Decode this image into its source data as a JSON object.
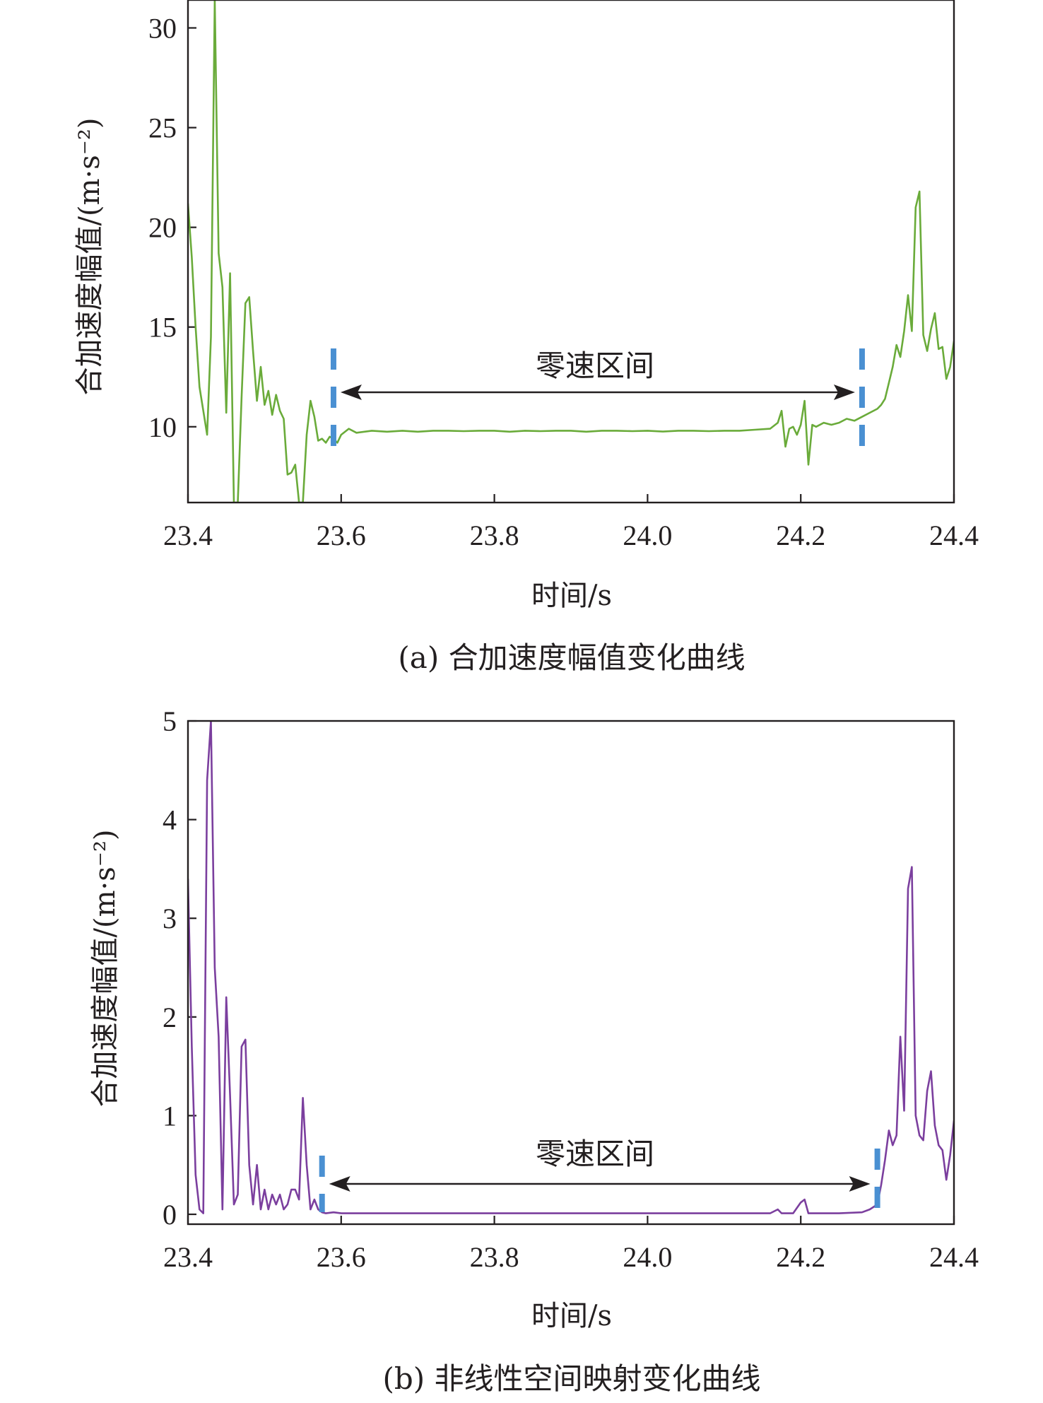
{
  "colors": {
    "series_a": "#6aab3a",
    "series_b": "#7b3f9e",
    "marker": "#4a90d2",
    "arrow": "#231f20",
    "axis": "#231f20"
  },
  "chart_data": [
    {
      "type": "line",
      "caption": "(a) 合加速度幅值变化曲线",
      "xlabel": "时间/s",
      "ylabel": "合加速度幅值/(m·s⁻²)",
      "xlim": [
        23.4,
        24.4
      ],
      "ylim": [
        6.2,
        31.4
      ],
      "xticks": [
        "23.4",
        "23.6",
        "23.8",
        "24.0",
        "24.2",
        "24.4"
      ],
      "yticks": [
        "10",
        "15",
        "20",
        "25",
        "30"
      ],
      "ytick_values": [
        10,
        15,
        20,
        25,
        30
      ],
      "annotation": "零速区间",
      "zero_velocity_interval": [
        23.59,
        24.28
      ],
      "series": [
        {
          "x": [
            23.4,
            23.405,
            23.41,
            23.415,
            23.42,
            23.425,
            23.43,
            23.435,
            23.44,
            23.445,
            23.45,
            23.455,
            23.46,
            23.465,
            23.47,
            23.475,
            23.48,
            23.485,
            23.49,
            23.495,
            23.5,
            23.505,
            23.51,
            23.515,
            23.52,
            23.525,
            23.53,
            23.535,
            23.54,
            23.545,
            23.55,
            23.555,
            23.56,
            23.565,
            23.57,
            23.575,
            23.58,
            23.585,
            23.59,
            23.595,
            23.6,
            23.61,
            23.62,
            23.64,
            23.66,
            23.68,
            23.7,
            23.72,
            23.74,
            23.76,
            23.78,
            23.8,
            23.82,
            23.84,
            23.86,
            23.88,
            23.9,
            23.92,
            23.94,
            23.96,
            23.98,
            24.0,
            24.02,
            24.04,
            24.06,
            24.08,
            24.1,
            24.12,
            24.14,
            24.16,
            24.17,
            24.175,
            24.18,
            24.185,
            24.19,
            24.195,
            24.2,
            24.205,
            24.21,
            24.215,
            24.22,
            24.23,
            24.24,
            24.25,
            24.26,
            24.27,
            24.28,
            24.29,
            24.3,
            24.305,
            24.31,
            24.315,
            24.32,
            24.325,
            24.33,
            24.335,
            24.34,
            24.345,
            24.35,
            24.355,
            24.36,
            24.365,
            24.37,
            24.375,
            24.38,
            24.385,
            24.39,
            24.395,
            24.4
          ],
          "y": [
            21.2,
            18.5,
            15.0,
            12.0,
            10.8,
            9.6,
            14.5,
            31.4,
            18.7,
            17.0,
            10.7,
            17.7,
            6.2,
            6.2,
            11.5,
            16.2,
            16.5,
            13.8,
            11.3,
            13.0,
            11.1,
            11.8,
            10.6,
            11.6,
            10.8,
            10.4,
            7.6,
            7.7,
            8.1,
            6.2,
            6.2,
            9.6,
            11.3,
            10.5,
            9.3,
            9.4,
            9.2,
            9.5,
            9.4,
            9.2,
            9.6,
            9.9,
            9.7,
            9.8,
            9.75,
            9.8,
            9.75,
            9.8,
            9.8,
            9.78,
            9.8,
            9.8,
            9.75,
            9.8,
            9.78,
            9.8,
            9.8,
            9.75,
            9.8,
            9.8,
            9.78,
            9.8,
            9.76,
            9.8,
            9.8,
            9.78,
            9.8,
            9.8,
            9.85,
            9.9,
            10.2,
            10.8,
            9.0,
            9.9,
            10.0,
            9.6,
            10.1,
            11.3,
            8.1,
            10.1,
            10.0,
            10.2,
            10.1,
            10.2,
            10.4,
            10.3,
            10.5,
            10.7,
            10.9,
            11.1,
            11.4,
            12.2,
            13.0,
            14.1,
            13.5,
            14.8,
            16.6,
            14.8,
            21.0,
            21.8,
            14.6,
            13.8,
            14.9,
            15.7,
            13.9,
            14.0,
            12.4,
            13.0,
            14.3
          ]
        }
      ]
    },
    {
      "type": "line",
      "caption": "(b) 非线性空间映射变化曲线",
      "xlabel": "时间/s",
      "ylabel": "合加速度幅值/(m·s⁻²)",
      "xlim": [
        23.4,
        24.4
      ],
      "ylim": [
        -0.1,
        5.0
      ],
      "xticks": [
        "23.4",
        "23.6",
        "23.8",
        "24.0",
        "24.2",
        "24.4"
      ],
      "yticks": [
        "0",
        "1",
        "2",
        "3",
        "4",
        "5"
      ],
      "ytick_values": [
        0,
        1,
        2,
        3,
        4,
        5
      ],
      "annotation": "零速区间",
      "zero_velocity_interval": [
        23.575,
        24.3
      ],
      "series": [
        {
          "x": [
            23.4,
            23.405,
            23.41,
            23.415,
            23.42,
            23.425,
            23.43,
            23.435,
            23.44,
            23.445,
            23.45,
            23.455,
            23.46,
            23.465,
            23.47,
            23.475,
            23.48,
            23.485,
            23.49,
            23.495,
            23.5,
            23.505,
            23.51,
            23.515,
            23.52,
            23.525,
            23.53,
            23.535,
            23.54,
            23.545,
            23.55,
            23.555,
            23.56,
            23.565,
            23.57,
            23.575,
            23.58,
            23.59,
            23.6,
            23.62,
            23.65,
            23.7,
            23.75,
            23.8,
            23.85,
            23.9,
            23.95,
            24.0,
            24.05,
            24.1,
            24.15,
            24.16,
            24.17,
            24.175,
            24.18,
            24.19,
            24.2,
            24.205,
            24.21,
            24.215,
            24.22,
            24.25,
            24.28,
            24.29,
            24.3,
            24.305,
            24.31,
            24.315,
            24.32,
            24.325,
            24.33,
            24.335,
            24.34,
            24.345,
            24.35,
            24.355,
            24.36,
            24.365,
            24.37,
            24.375,
            24.38,
            24.385,
            24.39,
            24.395,
            24.4
          ],
          "y": [
            3.4,
            1.7,
            0.4,
            0.05,
            0.01,
            4.4,
            5.0,
            2.5,
            1.8,
            0.05,
            2.2,
            1.2,
            0.1,
            0.2,
            1.7,
            1.77,
            0.5,
            0.1,
            0.5,
            0.05,
            0.25,
            0.05,
            0.2,
            0.1,
            0.2,
            0.05,
            0.1,
            0.25,
            0.25,
            0.15,
            1.18,
            0.5,
            0.05,
            0.15,
            0.05,
            0.02,
            0.01,
            0.02,
            0.01,
            0.01,
            0.01,
            0.01,
            0.01,
            0.01,
            0.01,
            0.01,
            0.01,
            0.01,
            0.01,
            0.01,
            0.01,
            0.01,
            0.05,
            0.01,
            0.01,
            0.01,
            0.12,
            0.15,
            0.01,
            0.01,
            0.01,
            0.01,
            0.02,
            0.05,
            0.1,
            0.3,
            0.55,
            0.85,
            0.7,
            0.8,
            1.8,
            1.05,
            3.3,
            3.52,
            1.0,
            0.8,
            0.75,
            1.25,
            1.45,
            0.9,
            0.7,
            0.65,
            0.35,
            0.6,
            0.95
          ]
        }
      ]
    }
  ]
}
